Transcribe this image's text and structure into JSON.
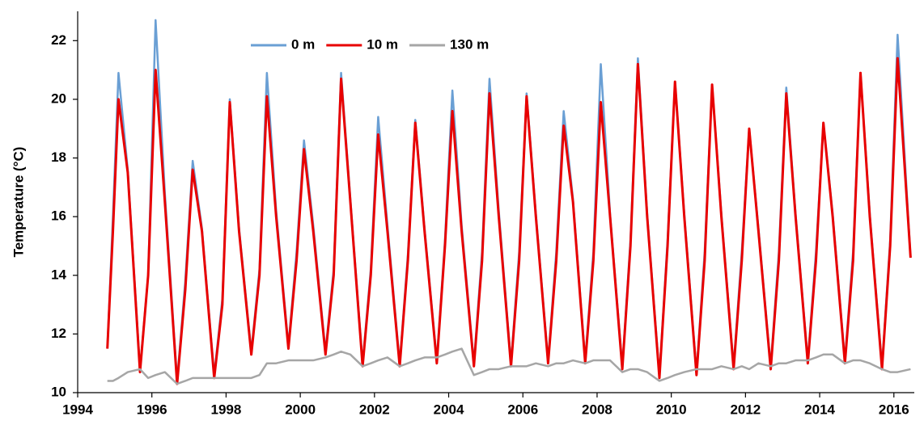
{
  "chart_data": {
    "type": "line",
    "y_label": "Temperature (°C)",
    "x": [
      1994.8,
      1994.95,
      1995.1,
      1995.35,
      1995.68,
      1995.9,
      1996.1,
      1996.35,
      1996.68,
      1996.9,
      1997.1,
      1997.35,
      1997.68,
      1997.9,
      1998.1,
      1998.35,
      1998.68,
      1998.9,
      1999.1,
      1999.35,
      1999.68,
      1999.9,
      2000.1,
      2000.35,
      2000.68,
      2000.9,
      2001.1,
      2001.35,
      2001.68,
      2001.9,
      2002.1,
      2002.35,
      2002.68,
      2002.9,
      2003.1,
      2003.35,
      2003.68,
      2003.9,
      2004.1,
      2004.35,
      2004.68,
      2004.9,
      2005.1,
      2005.35,
      2005.68,
      2005.9,
      2006.1,
      2006.35,
      2006.68,
      2006.9,
      2007.1,
      2007.35,
      2007.68,
      2007.9,
      2008.1,
      2008.35,
      2008.68,
      2008.9,
      2009.1,
      2009.35,
      2009.68,
      2009.9,
      2010.1,
      2010.35,
      2010.68,
      2010.9,
      2011.1,
      2011.35,
      2011.68,
      2011.9,
      2012.1,
      2012.35,
      2012.68,
      2012.9,
      2013.1,
      2013.35,
      2013.68,
      2013.9,
      2014.1,
      2014.35,
      2014.68,
      2014.9,
      2015.1,
      2015.35,
      2015.68,
      2015.9,
      2016.1,
      2016.45
    ],
    "series": [
      {
        "name": "0 m",
        "color": "#6a9fd4",
        "values": [
          11.5,
          16.0,
          20.9,
          17.6,
          10.8,
          14.0,
          22.7,
          16.8,
          10.4,
          13.8,
          17.9,
          15.6,
          10.6,
          13.2,
          20.0,
          15.6,
          11.4,
          14.2,
          20.9,
          16.2,
          11.6,
          14.8,
          18.6,
          15.7,
          11.4,
          14.2,
          20.9,
          16.6,
          11.0,
          14.2,
          19.4,
          15.7,
          11.0,
          14.7,
          19.3,
          15.6,
          11.1,
          15.2,
          20.3,
          15.7,
          11.0,
          14.8,
          20.7,
          16.2,
          11.0,
          14.8,
          20.2,
          16.1,
          11.1,
          14.8,
          19.6,
          16.6,
          11.1,
          14.8,
          21.2,
          16.1,
          10.9,
          15.2,
          21.4,
          16.1,
          10.6,
          15.2,
          20.6,
          16.1,
          10.7,
          14.8,
          20.5,
          16.1,
          10.9,
          14.8,
          19.0,
          15.6,
          10.9,
          14.8,
          20.4,
          16.1,
          11.1,
          14.8,
          19.2,
          16.1,
          11.1,
          14.8,
          20.9,
          16.1,
          10.9,
          15.2,
          22.2,
          14.6
        ]
      },
      {
        "name": "10 m",
        "color": "#e80000",
        "values": [
          11.5,
          15.5,
          20.0,
          17.5,
          10.7,
          14.0,
          21.0,
          16.5,
          10.3,
          13.5,
          17.6,
          15.5,
          10.5,
          13.0,
          19.9,
          15.5,
          11.3,
          14.0,
          20.1,
          16.0,
          11.5,
          14.5,
          18.3,
          15.5,
          11.3,
          14.0,
          20.7,
          16.5,
          10.9,
          14.0,
          18.8,
          15.5,
          10.9,
          14.5,
          19.2,
          15.5,
          11.0,
          15.0,
          19.6,
          15.5,
          10.9,
          14.5,
          20.2,
          16.0,
          10.9,
          14.5,
          20.1,
          16.0,
          11.0,
          14.5,
          19.1,
          16.5,
          11.0,
          14.5,
          19.9,
          16.0,
          10.8,
          15.0,
          21.2,
          16.0,
          10.5,
          15.0,
          20.6,
          16.0,
          10.6,
          14.5,
          20.5,
          16.0,
          10.8,
          14.5,
          19.0,
          15.5,
          10.8,
          14.5,
          20.2,
          16.0,
          11.0,
          14.5,
          19.2,
          16.0,
          11.0,
          14.5,
          20.9,
          16.0,
          10.8,
          15.0,
          21.4,
          14.6
        ]
      },
      {
        "name": "130 m",
        "color": "#a6a6a6",
        "values": [
          10.4,
          10.4,
          10.5,
          10.7,
          10.8,
          10.5,
          10.6,
          10.7,
          10.3,
          10.4,
          10.5,
          10.5,
          10.5,
          10.5,
          10.5,
          10.5,
          10.5,
          10.6,
          11.0,
          11.0,
          11.1,
          11.1,
          11.1,
          11.1,
          11.2,
          11.3,
          11.4,
          11.3,
          10.9,
          11.0,
          11.1,
          11.2,
          10.9,
          11.0,
          11.1,
          11.2,
          11.2,
          11.3,
          11.4,
          11.5,
          10.6,
          10.7,
          10.8,
          10.8,
          10.9,
          10.9,
          10.9,
          11.0,
          10.9,
          11.0,
          11.0,
          11.1,
          11.0,
          11.1,
          11.1,
          11.1,
          10.7,
          10.8,
          10.8,
          10.7,
          10.4,
          10.5,
          10.6,
          10.7,
          10.8,
          10.8,
          10.8,
          10.9,
          10.8,
          10.9,
          10.8,
          11.0,
          10.9,
          11.0,
          11.0,
          11.1,
          11.1,
          11.2,
          11.3,
          11.3,
          11.0,
          11.1,
          11.1,
          11.0,
          10.8,
          10.7,
          10.7,
          10.8
        ]
      }
    ],
    "xlim": [
      1994,
      2016.55
    ],
    "xticks": [
      1994,
      1996,
      1998,
      2000,
      2002,
      2004,
      2006,
      2008,
      2010,
      2012,
      2014,
      2016
    ],
    "ylim": [
      10,
      23
    ],
    "yticks": [
      10,
      12,
      14,
      16,
      18,
      20,
      22
    ],
    "grid": false,
    "legend": "top"
  }
}
